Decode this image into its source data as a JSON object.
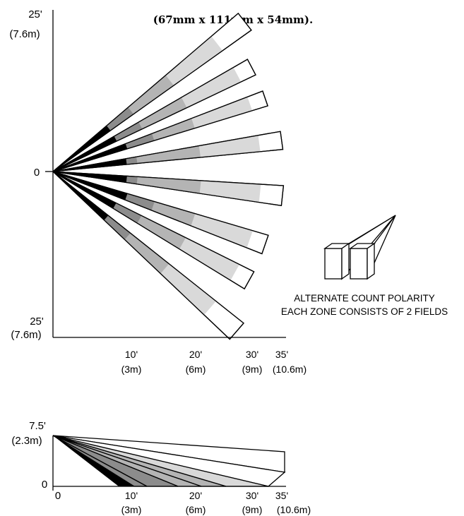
{
  "caption": "(67mm x 111mm x 54mm).",
  "top_view": {
    "y_top_label": "25'",
    "y_top_metric": "(7.6m)",
    "y_mid_label": "0",
    "y_bottom_label": "25'",
    "y_bottom_metric": "(7.6m)",
    "x_ticks": [
      {
        "ft": "10'",
        "m": "(3m)"
      },
      {
        "ft": "20'",
        "m": "(6m)"
      },
      {
        "ft": "30'",
        "m": "(9m)"
      },
      {
        "ft": "35'",
        "m": "(10.6m)"
      }
    ]
  },
  "legend": {
    "line1": "ALTERNATE COUNT POLARITY",
    "line2": "EACH ZONE CONSISTS OF 2 FIELDS"
  },
  "side_view": {
    "y_top_label": "7.5'",
    "y_top_metric": "(2.3m)",
    "y_zero_label": "0",
    "x_zero_label": "0",
    "x_ticks": [
      {
        "ft": "10'",
        "m": "(3m)"
      },
      {
        "ft": "20'",
        "m": "(6m)"
      },
      {
        "ft": "30'",
        "m": "(9m)"
      },
      {
        "ft": "35'",
        "m": "(10.6m)"
      }
    ]
  },
  "colors": {
    "black": "#000000",
    "dark_gray": "#8c8c8c",
    "mid_gray": "#b4b4b4",
    "light_gray": "#d9d9d9",
    "white": "#ffffff"
  }
}
